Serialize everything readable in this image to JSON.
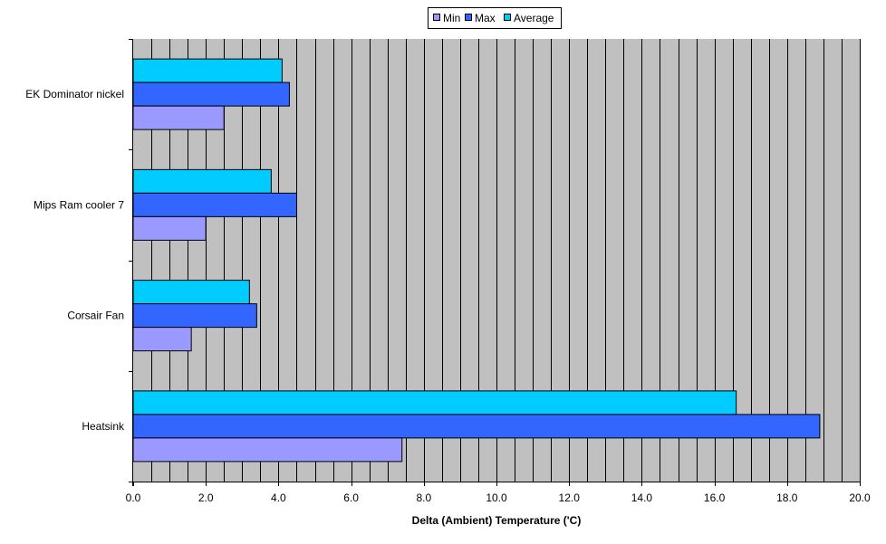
{
  "chart_data": {
    "type": "bar",
    "orientation": "horizontal",
    "categories": [
      "Heatsink",
      "Corsair Fan",
      "Mips Ram cooler 7",
      "EK Dominator nickel"
    ],
    "series": [
      {
        "name": "Min",
        "values": [
          7.4,
          1.6,
          2.0,
          2.5
        ]
      },
      {
        "name": "Max",
        "values": [
          18.9,
          3.4,
          4.5,
          4.3
        ]
      },
      {
        "name": "Average",
        "values": [
          16.6,
          3.2,
          3.8,
          4.1
        ]
      }
    ],
    "xlabel": "Delta (Ambient) Temperature ('C)",
    "ylabel": "",
    "xlim": [
      0,
      20
    ],
    "x_ticks": [
      "0.0",
      "2.0",
      "4.0",
      "6.0",
      "8.0",
      "10.0",
      "12.0",
      "14.0",
      "16.0",
      "18.0",
      "20.0"
    ],
    "grid": "vertical",
    "legend_position": "top-center"
  },
  "colors": {
    "Min": "#9999ff",
    "Max": "#3366ff",
    "Average": "#00ccff",
    "plot_background": "#c0c0c0",
    "gridline": "#000000"
  }
}
